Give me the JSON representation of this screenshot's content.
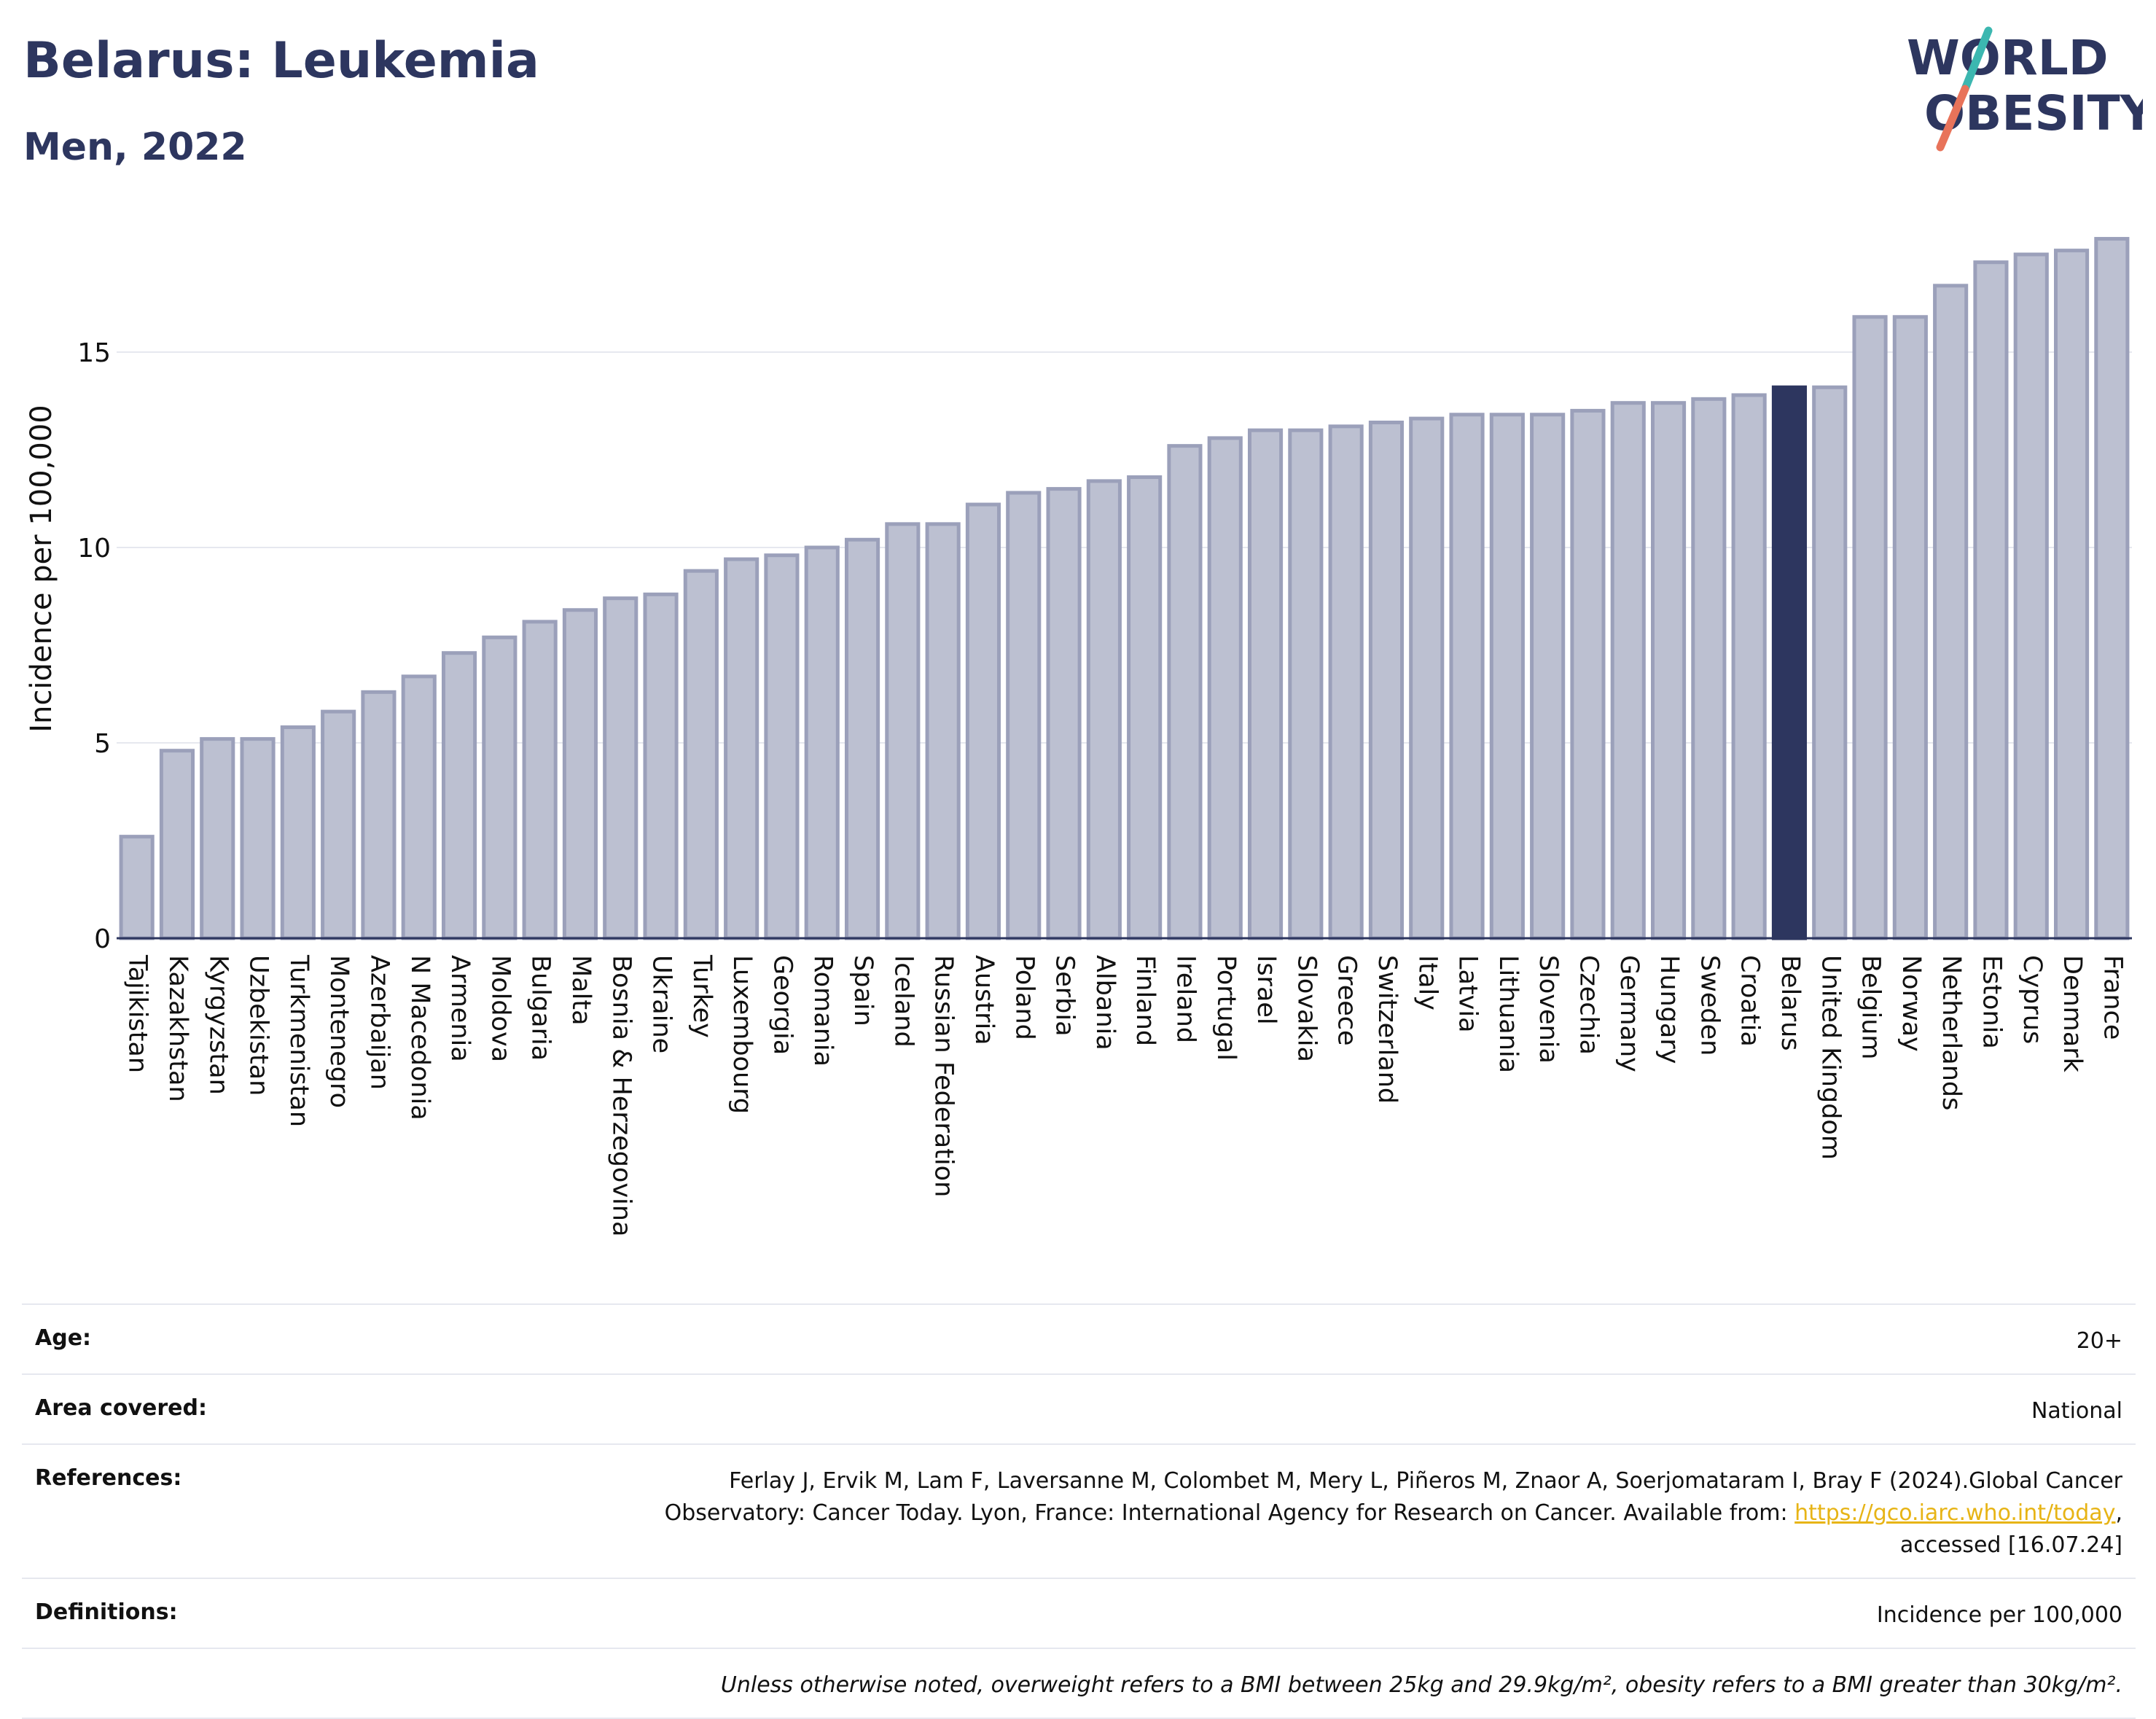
{
  "header": {
    "title": "Belarus: Leukemia",
    "subtitle": "Men, 2022",
    "logo_line1": "WORLD",
    "logo_line2": "OBESITY"
  },
  "colors": {
    "bar": "#bcc0d1",
    "bar_border": "#9ba0ba",
    "highlight": "#2d365f",
    "logo_text": "#2d365f",
    "logo_slash_teal": "#3cb7b0",
    "logo_slash_coral": "#e8735a",
    "link": "#e7b416"
  },
  "chart_data": {
    "type": "bar",
    "ylabel": "Incidence per 100,000",
    "ylim": [
      0,
      18
    ],
    "yticks": [
      0,
      5,
      10,
      15
    ],
    "grid": true,
    "highlight": "Belarus",
    "categories": [
      "Tajikistan",
      "Kazakhstan",
      "Kyrgyzstan",
      "Uzbekistan",
      "Turkmenistan",
      "Montenegro",
      "Azerbaijan",
      "N Macedonia",
      "Armenia",
      "Moldova",
      "Bulgaria",
      "Malta",
      "Bosnia & Herzegovina",
      "Ukraine",
      "Turkey",
      "Luxembourg",
      "Georgia",
      "Romania",
      "Spain",
      "Iceland",
      "Russian Federation",
      "Austria",
      "Poland",
      "Serbia",
      "Albania",
      "Finland",
      "Ireland",
      "Portugal",
      "Israel",
      "Slovakia",
      "Greece",
      "Switzerland",
      "Italy",
      "Latvia",
      "Lithuania",
      "Slovenia",
      "Czechia",
      "Germany",
      "Hungary",
      "Sweden",
      "Croatia",
      "Belarus",
      "United Kingdom",
      "Belgium",
      "Norway",
      "Netherlands",
      "Estonia",
      "Cyprus",
      "Denmark",
      "France"
    ],
    "values": [
      2.6,
      4.8,
      5.1,
      5.1,
      5.4,
      5.8,
      6.3,
      6.7,
      7.3,
      7.7,
      8.1,
      8.4,
      8.7,
      8.8,
      9.4,
      9.7,
      9.8,
      10.0,
      10.2,
      10.6,
      10.6,
      11.1,
      11.4,
      11.5,
      11.7,
      11.8,
      12.6,
      12.8,
      13.0,
      13.0,
      13.1,
      13.2,
      13.3,
      13.4,
      13.4,
      13.4,
      13.5,
      13.7,
      13.7,
      13.8,
      13.9,
      14.1,
      14.1,
      15.9,
      15.9,
      16.7,
      17.3,
      17.5,
      17.6,
      17.9
    ]
  },
  "info": {
    "age_label": "Age:",
    "age_value": "20+",
    "area_label": "Area covered:",
    "area_value": "National",
    "references_label": "References:",
    "references_line1": "Ferlay J, Ervik M, Lam F, Laversanne M, Colombet M, Mery L, Piñeros M, Znaor A, Soerjomataram I, Bray F (2024).Global Cancer",
    "references_line2": "Observatory: Cancer Today. Lyon, France: International Agency for Research on Cancer. Available from: ",
    "references_link": "https://gco.iarc.who.int/today",
    "references_comma": ",",
    "references_line3": "accessed [16.07.24]",
    "definitions_label": "Definitions:",
    "definitions_value": "Incidence per 100,000",
    "note": "Unless otherwise noted, overweight refers to a BMI between 25kg and 29.9kg/m², obesity refers to a BMI greater than 30kg/m²."
  }
}
